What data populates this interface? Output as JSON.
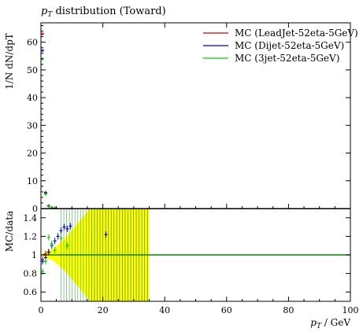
{
  "chart_data": {
    "type": "line",
    "title": "pT distribution (Toward)",
    "xlabel": "pT / GeV",
    "main": {
      "ylabel": "1/N dN/dpT",
      "xlim": [
        0,
        100
      ],
      "ylim": [
        0,
        67
      ],
      "yticks": [
        0,
        10,
        20,
        30,
        40,
        50,
        60
      ],
      "grid": false,
      "legend_position": "top-right",
      "series": [
        {
          "name": "MC (LeadJet-52eta-5GeV)",
          "color": "#cc0000",
          "points": [
            [
              0.5,
              63.0
            ],
            [
              1.5,
              5.8
            ],
            [
              2.5,
              1.0
            ],
            [
              3.5,
              0.3
            ],
            [
              4.5,
              0.15
            ]
          ]
        },
        {
          "name": "MC (Dijet-52eta-5GeV)",
          "color": "#0000cc",
          "points": [
            [
              0.5,
              57.0
            ],
            [
              1.5,
              5.5
            ],
            [
              2.5,
              0.9
            ],
            [
              3.5,
              0.25
            ],
            [
              4.5,
              0.1
            ]
          ]
        },
        {
          "name": "MC (3jet-52eta-5GeV)",
          "color": "#00cc00",
          "points": [
            [
              0.5,
              54.0
            ],
            [
              1.5,
              5.2
            ],
            [
              2.5,
              0.8
            ],
            [
              3.5,
              0.2
            ],
            [
              4.5,
              0.1
            ]
          ]
        }
      ]
    },
    "ratio": {
      "ylabel": "MC/data",
      "xlim": [
        0,
        100
      ],
      "ylim": [
        0.5,
        1.5
      ],
      "yticks": [
        0.6,
        0.8,
        1.0,
        1.2,
        1.4
      ],
      "xticks": [
        0,
        20,
        40,
        60,
        80,
        100
      ],
      "reference": 1.0,
      "band_color": "#ffff00",
      "band": [
        [
          0.5,
          0.01
        ],
        [
          2,
          0.04
        ],
        [
          4,
          0.06
        ],
        [
          6,
          0.12
        ],
        [
          8,
          0.18
        ],
        [
          10,
          0.26
        ],
        [
          12,
          0.34
        ],
        [
          14,
          0.42
        ],
        [
          16,
          0.5
        ],
        [
          35,
          0.5
        ]
      ],
      "band_end": 35,
      "series": [
        {
          "name": "MC (LeadJet-52eta-5GeV)",
          "color": "#cc0000",
          "points": [
            [
              0.5,
              0.95
            ],
            [
              1.5,
              1.01
            ],
            [
              2.5,
              1.03
            ]
          ]
        },
        {
          "name": "MC (Dijet-52eta-5GeV)",
          "color": "#0000cc",
          "points": [
            [
              0.5,
              0.93
            ],
            [
              1.5,
              0.97
            ],
            [
              2.5,
              1.03
            ],
            [
              3.5,
              1.1
            ],
            [
              4.5,
              1.15
            ],
            [
              5.5,
              1.2
            ],
            [
              6.5,
              1.26
            ],
            [
              7.5,
              1.3
            ],
            [
              8.5,
              1.28
            ],
            [
              9.5,
              1.31
            ],
            [
              21,
              1.22
            ]
          ]
        },
        {
          "name": "MC (3jet-52eta-5GeV)",
          "color": "#00cc00",
          "points": [
            [
              0.5,
              0.82
            ],
            [
              1.5,
              0.93
            ],
            [
              2.5,
              1.19
            ],
            [
              3.5,
              1.12
            ],
            [
              4.5,
              1.05
            ],
            [
              6.5,
              1.18
            ],
            [
              8.5,
              1.1
            ]
          ]
        }
      ]
    }
  }
}
